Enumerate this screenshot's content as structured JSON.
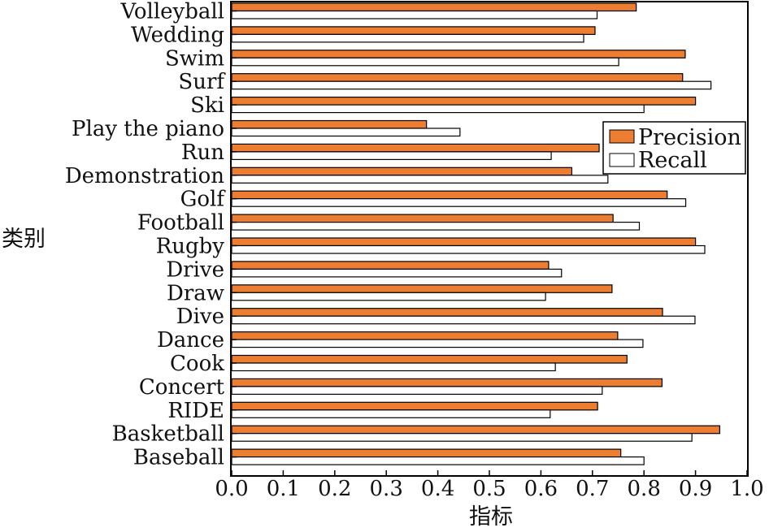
{
  "chart_data": {
    "type": "bar",
    "orientation": "horizontal",
    "xlabel": "指标",
    "ylabel": "类别",
    "xlim": [
      0.0,
      1.0
    ],
    "x_ticks": [
      "0.0",
      "0.1",
      "0.2",
      "0.3",
      "0.4",
      "0.5",
      "0.6",
      "0.7",
      "0.8",
      "0.9",
      "1.0"
    ],
    "grid": false,
    "legend_position": "right, upper-middle",
    "categories": [
      "Volleyball",
      "Wedding",
      "Swim",
      "Surf",
      "Ski",
      "Play the piano",
      "Run",
      "Demonstration",
      "Golf",
      "Football",
      "Rugby",
      "Drive",
      "Draw",
      "Dive",
      "Dance",
      "Cook",
      "Concert",
      "RIDE",
      "Basketball",
      "Baseball"
    ],
    "series": [
      {
        "name": "Precision",
        "color": "#ed7d31",
        "values": [
          0.785,
          0.705,
          0.88,
          0.875,
          0.9,
          0.378,
          0.713,
          0.66,
          0.845,
          0.74,
          0.9,
          0.615,
          0.738,
          0.836,
          0.749,
          0.767,
          0.835,
          0.71,
          0.947,
          0.755
        ]
      },
      {
        "name": "Recall",
        "color": "#ffffff",
        "values": [
          0.709,
          0.683,
          0.751,
          0.93,
          0.8,
          0.443,
          0.62,
          0.73,
          0.881,
          0.791,
          0.918,
          0.64,
          0.609,
          0.899,
          0.798,
          0.628,
          0.719,
          0.618,
          0.893,
          0.8
        ]
      }
    ]
  }
}
